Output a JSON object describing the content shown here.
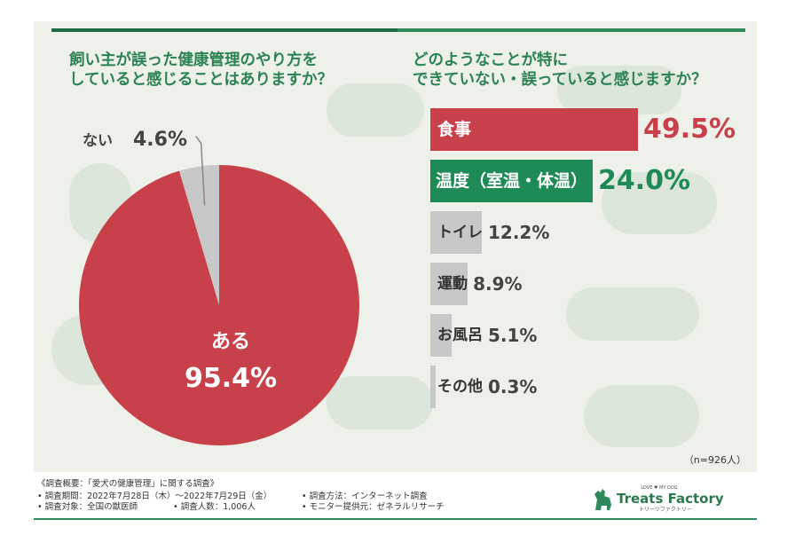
{
  "left_title": [
    "飼い主が誤った健康管理のやり方を",
    "していると感じることはありますか？"
  ],
  "right_title": [
    "どのようなことが特に",
    "できていない・誤っていると感じますか？"
  ],
  "colors": {
    "red": "#c8414a",
    "green": "#1e8a55",
    "gray": "#c8c8c8",
    "title_green": "#2b8253"
  },
  "chart_data": [
    {
      "type": "pie",
      "title": "飼い主が誤った健康管理のやり方をしていると感じることはありますか？",
      "slices": [
        {
          "label": "ある",
          "value": 95.4,
          "display": "95.4%",
          "color": "#c8414a"
        },
        {
          "label": "ない",
          "value": 4.6,
          "display": "4.6%",
          "color": "#c8c8c8"
        }
      ]
    },
    {
      "type": "bar",
      "orientation": "horizontal",
      "title": "どのようなことが特にできていない・誤っていると感じますか？",
      "categories": [
        "食事",
        "温度（室温・体温）",
        "トイレ",
        "運動",
        "お風呂",
        "その他"
      ],
      "values": [
        49.5,
        24.0,
        12.2,
        8.9,
        5.1,
        0.3
      ],
      "value_labels": [
        "49.5%",
        "24.0%",
        "12.2%",
        "8.9%",
        "5.1%",
        "0.3%"
      ],
      "colors": [
        "#c8414a",
        "#1e8a55",
        "#c8c8c8",
        "#c8c8c8",
        "#c8c8c8",
        "#c8c8c8"
      ],
      "xlim": [
        0,
        49.5
      ]
    }
  ],
  "n_note": "（n=926人）",
  "footer": {
    "survey_title": "《調査概要：「愛犬の健康管理」に関する調査》",
    "period": "• 調査期間：2022年7月28日（木）〜2022年7月29日（金）",
    "target": "• 調査対象：全国の獣医師",
    "count": "• 調査人数：1,006人",
    "method": "• 調査方法：インターネット調査",
    "provider": "• モニター提供元：ゼネラルリサーチ"
  },
  "logo": {
    "top": "LOVE ♥ MY DOG",
    "name": "Treats Factory",
    "sub": "トリーツファクトリー"
  }
}
